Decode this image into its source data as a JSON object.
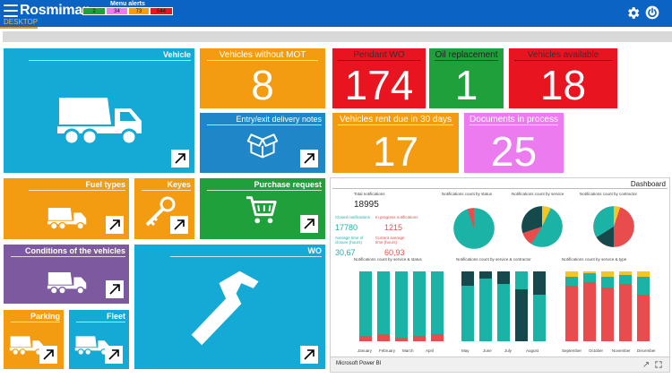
{
  "header": {
    "app_title": "Rosmiman",
    "tab": "DESKTOP",
    "alerts_title": "Menu alerts",
    "alerts": [
      {
        "value": "2",
        "color": "#1fa03a"
      },
      {
        "value": "34",
        "color": "#ec7bf0"
      },
      {
        "value": "73",
        "color": "#f39c12"
      },
      {
        "value": "644",
        "color": "#e8141f"
      }
    ]
  },
  "tiles": {
    "vehicle": {
      "title": "Vehicle",
      "color": "#15a9d6",
      "icon": "dump-truck-icon"
    },
    "mot": {
      "title": "Vehicles without MOT",
      "value": "8",
      "color": "#f39c12"
    },
    "entry": {
      "title": "Entry/exit delivery notes",
      "color": "#1f86c7",
      "icon": "open-box-icon"
    },
    "pending": {
      "title": "Pendant WO",
      "value": "174",
      "color": "#e8141f"
    },
    "oil": {
      "title": "Oil replacement",
      "value": "1",
      "color": "#1fa03a"
    },
    "available": {
      "title": "Vehicles available",
      "value": "18",
      "color": "#e8141f"
    },
    "rent": {
      "title": "Vehicles rent due in 30 days",
      "value": "17",
      "color": "#f39c12"
    },
    "docs": {
      "title": "Documents in process",
      "value": "25",
      "color": "#ec7bf0"
    },
    "fuel": {
      "title": "Fuel types",
      "color": "#f39c12",
      "icon": "dump-truck-icon"
    },
    "keyes": {
      "title": "Keyes",
      "color": "#f39c12",
      "icon": "key-icon"
    },
    "purchase": {
      "title": "Purchase request",
      "color": "#1fa03a",
      "icon": "shopping-cart-icon"
    },
    "conditions": {
      "title": "Conditions of the vehicles",
      "color": "#7d5aa0",
      "icon": "dump-truck-icon"
    },
    "wo": {
      "title": "WO",
      "color": "#15a9d6",
      "icon": "hammer-icon"
    },
    "parking": {
      "title": "Parking",
      "color": "#f39c12",
      "icon": "dump-truck-icon"
    },
    "fleet": {
      "title": "Fleet",
      "color": "#15a9d6",
      "icon": "dump-truck-icon"
    }
  },
  "dashboard": {
    "title": "Dashboard",
    "footer": "Microsoft Power BI",
    "total_label": "Total notifications",
    "total_value": "18995",
    "closed_label": "Closed notifications",
    "closed_value": "17780",
    "inprog_label": "In progress notifications",
    "inprog_value": "1215",
    "avg_closed_label": "Average time of closure (hours)",
    "avg_closed_value": "30,67",
    "avg_open_label": "Current average time (hours)",
    "avg_open_value": "60,93",
    "pie_titles": [
      "Notifications count by status",
      "Notifications count by service",
      "Notifications count by contractor"
    ],
    "bar_titles": [
      "Notifications count by service & status",
      "Notifications count by service & contractor",
      "Notifications count by service & type"
    ],
    "months": [
      "January",
      "February",
      "March",
      "April",
      "May",
      "June",
      "July",
      "August",
      "September",
      "October",
      "November",
      "December"
    ]
  }
}
